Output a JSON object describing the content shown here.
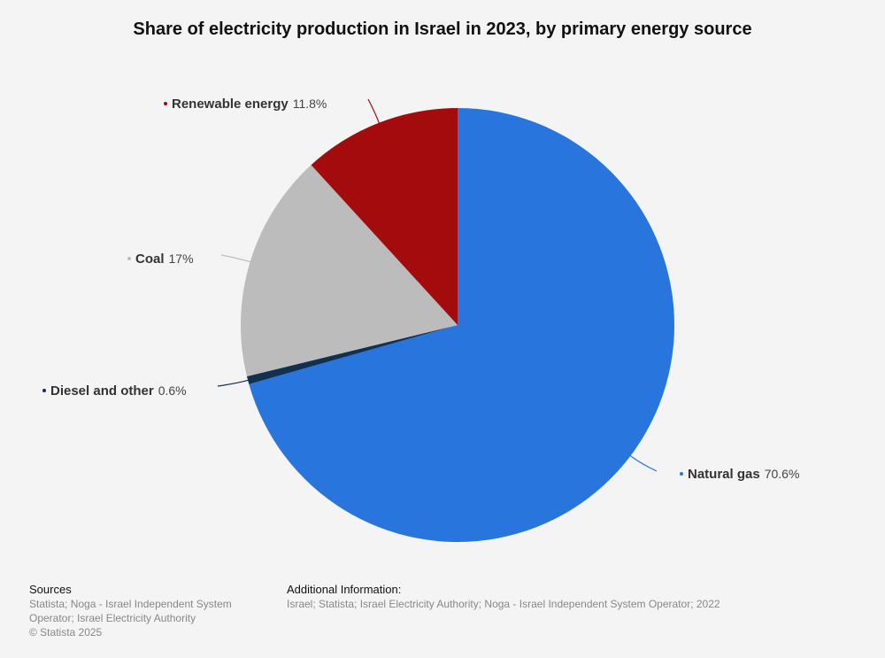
{
  "chart_data": {
    "type": "pie",
    "title": "Share of electricity production in Israel in 2023, by primary energy source",
    "unit": "%",
    "slices": [
      {
        "name": "Natural gas",
        "value": 70.6,
        "value_label": "70.6%",
        "color": "#2876dd"
      },
      {
        "name": "Diesel and other",
        "value": 0.6,
        "value_label": "0.6%",
        "color": "#12304f"
      },
      {
        "name": "Coal",
        "value": 17,
        "value_label": "17%",
        "color": "#bcbcbc"
      },
      {
        "name": "Renewable energy",
        "value": 11.8,
        "value_label": "11.8%",
        "color": "#a30b0c"
      }
    ]
  },
  "footer": {
    "sources_heading": "Sources",
    "sources_line1": "Statista; Noga - Israel Independent System",
    "sources_line2": "Operator; Israel Electricity Authority",
    "copyright": "© Statista 2025",
    "additional_heading": "Additional Information:",
    "additional_text": "Israel; Statista; Israel Electricity Authority; Noga - Israel Independent System Operator; 2022"
  }
}
